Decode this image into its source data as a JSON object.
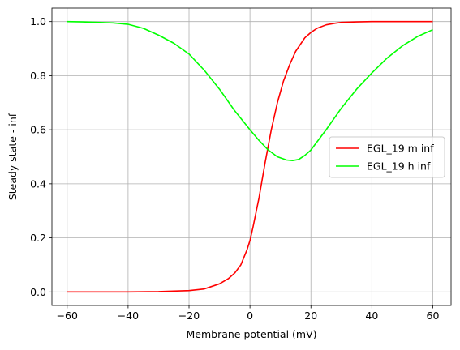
{
  "chart_data": {
    "type": "line",
    "title": "",
    "xlabel": "Membrane potential (mV)",
    "ylabel": "Steady state - inf",
    "xlim": [
      -65,
      66
    ],
    "ylim": [
      -0.05,
      1.05
    ],
    "xticks": [
      -60,
      -40,
      -20,
      0,
      20,
      40,
      60
    ],
    "yticks": [
      0.0,
      0.2,
      0.4,
      0.6,
      0.8,
      1.0
    ],
    "xtick_labels": [
      "−60",
      "−40",
      "−20",
      "0",
      "20",
      "40",
      "60"
    ],
    "ytick_labels": [
      "0.0",
      "0.2",
      "0.4",
      "0.6",
      "0.8",
      "1.0"
    ],
    "grid": true,
    "legend_position": "center-right",
    "series": [
      {
        "name": "EGL_19 m inf",
        "color": "#ff0000",
        "x": [
          -60,
          -50,
          -40,
          -30,
          -20,
          -15,
          -10,
          -7,
          -5,
          -3,
          -1,
          0,
          1,
          3,
          5,
          7,
          9,
          11,
          13,
          15,
          18,
          20,
          22,
          25,
          28,
          30,
          35,
          40,
          50,
          60
        ],
        "y": [
          0.0,
          0.0,
          0.0,
          0.001,
          0.005,
          0.011,
          0.03,
          0.05,
          0.07,
          0.1,
          0.155,
          0.19,
          0.24,
          0.35,
          0.48,
          0.6,
          0.7,
          0.78,
          0.84,
          0.89,
          0.94,
          0.96,
          0.975,
          0.988,
          0.994,
          0.997,
          0.999,
          1.0,
          1.0,
          1.0
        ]
      },
      {
        "name": "EGL_19 h inf",
        "color": "#00ff00",
        "x": [
          -60,
          -55,
          -50,
          -45,
          -40,
          -35,
          -30,
          -25,
          -20,
          -15,
          -10,
          -5,
          0,
          3,
          6,
          9,
          12,
          14,
          16,
          18,
          20,
          25,
          30,
          35,
          40,
          45,
          50,
          55,
          60
        ],
        "y": [
          1.0,
          0.999,
          0.997,
          0.995,
          0.99,
          0.975,
          0.95,
          0.92,
          0.88,
          0.82,
          0.75,
          0.67,
          0.6,
          0.56,
          0.525,
          0.5,
          0.488,
          0.486,
          0.49,
          0.505,
          0.525,
          0.6,
          0.68,
          0.75,
          0.81,
          0.865,
          0.91,
          0.945,
          0.97
        ]
      }
    ]
  }
}
